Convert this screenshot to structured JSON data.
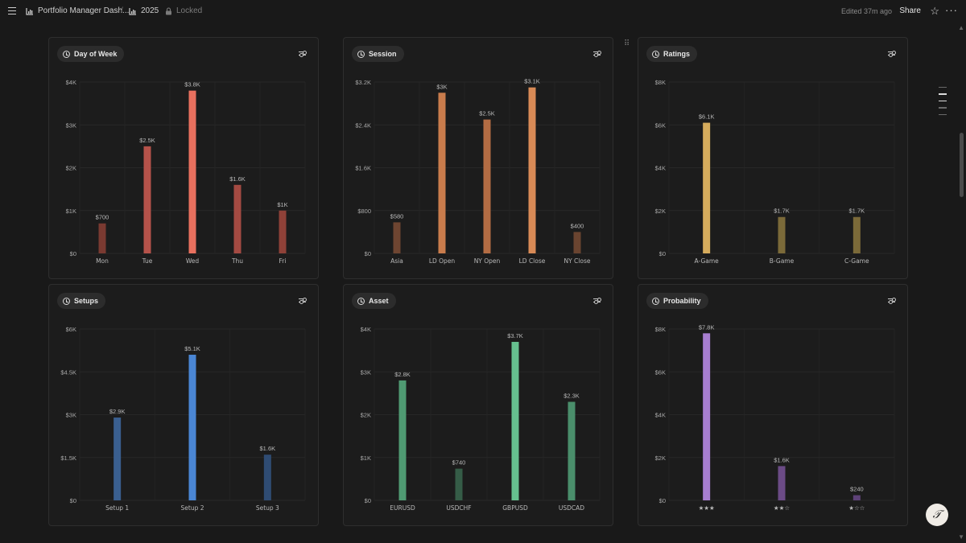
{
  "header": {
    "page_title": "Portfolio Manager Dash...",
    "subpage_title": "2025",
    "lock_status": "Locked",
    "edited_text": "Edited 37m ago",
    "share_label": "Share"
  },
  "colors": {
    "background": "#191919",
    "card": "#1c1c1c",
    "grid": "#2a2a2a"
  },
  "charts": [
    {
      "title": "Day of Week",
      "chart_data": {
        "type": "bar",
        "categories": [
          "Mon",
          "Tue",
          "Wed",
          "Thu",
          "Fri"
        ],
        "values": [
          700,
          2500,
          3800,
          1600,
          1000
        ],
        "value_labels": [
          "$700",
          "$2.5K",
          "$3.8K",
          "$1.6K",
          "$1K"
        ],
        "yticks": [
          0,
          1000,
          2000,
          3000,
          4000
        ],
        "ytick_labels": [
          "$0",
          "$1K",
          "$2K",
          "$3K",
          "$4K"
        ],
        "ylim": [
          0,
          4000
        ],
        "colors": [
          "#7a3a31",
          "#b5524a",
          "#e8705e",
          "#a44a42",
          "#8f4138"
        ]
      }
    },
    {
      "title": "Session",
      "chart_data": {
        "type": "bar",
        "categories": [
          "Asia",
          "LD Open",
          "NY Open",
          "LD Close",
          "NY Close"
        ],
        "values": [
          580,
          3000,
          2500,
          3100,
          400
        ],
        "value_labels": [
          "$580",
          "$3K",
          "$2.5K",
          "$3.1K",
          "$400"
        ],
        "yticks": [
          0,
          800,
          1600,
          2400,
          3200
        ],
        "ytick_labels": [
          "$0",
          "$800",
          "$1.6K",
          "$2.4K",
          "$3.2K"
        ],
        "ylim": [
          0,
          3200
        ],
        "colors": [
          "#6e4531",
          "#c97c4c",
          "#b36c43",
          "#d88a56",
          "#6a4430"
        ]
      }
    },
    {
      "title": "Ratings",
      "chart_data": {
        "type": "bar",
        "categories": [
          "A-Game",
          "B-Game",
          "C-Game"
        ],
        "values": [
          6100,
          1700,
          1700
        ],
        "value_labels": [
          "$6.1K",
          "$1.7K",
          "$1.7K"
        ],
        "yticks": [
          0,
          2000,
          4000,
          6000,
          8000
        ],
        "ytick_labels": [
          "$0",
          "$2K",
          "$4K",
          "$6K",
          "$8K"
        ],
        "ylim": [
          0,
          8000
        ],
        "colors": [
          "#d5ab5c",
          "#7b6a39",
          "#7b6a39"
        ]
      }
    },
    {
      "title": "Setups",
      "chart_data": {
        "type": "bar",
        "categories": [
          "Setup 1",
          "Setup 2",
          "Setup 3"
        ],
        "values": [
          2900,
          5100,
          1600
        ],
        "value_labels": [
          "$2.9K",
          "$5.1K",
          "$1.6K"
        ],
        "yticks": [
          0,
          1500,
          3000,
          4500,
          6000
        ],
        "ytick_labels": [
          "$0",
          "$1.5K",
          "$3K",
          "$4.5K",
          "$6K"
        ],
        "ylim": [
          0,
          6000
        ],
        "colors": [
          "#3a5f8f",
          "#4a86d4",
          "#2f4c73"
        ]
      }
    },
    {
      "title": "Asset",
      "chart_data": {
        "type": "bar",
        "categories": [
          "EURUSD",
          "USDCHF",
          "GBPUSD",
          "USDCAD"
        ],
        "values": [
          2800,
          740,
          3700,
          2300
        ],
        "value_labels": [
          "$2.8K",
          "$740",
          "$3.7K",
          "$2.3K"
        ],
        "yticks": [
          0,
          1000,
          2000,
          3000,
          4000
        ],
        "ytick_labels": [
          "$0",
          "$1K",
          "$2K",
          "$3K",
          "$4K"
        ],
        "ylim": [
          0,
          4000
        ],
        "colors": [
          "#4f9a72",
          "#355c47",
          "#66c08f",
          "#4a8e6b"
        ]
      }
    },
    {
      "title": "Probability",
      "chart_data": {
        "type": "bar",
        "categories": [
          "★★★",
          "★★☆",
          "★☆☆"
        ],
        "values": [
          7800,
          1600,
          240
        ],
        "value_labels": [
          "$7.8K",
          "$1.6K",
          "$240"
        ],
        "yticks": [
          0,
          2000,
          4000,
          6000,
          8000
        ],
        "ytick_labels": [
          "$0",
          "$2K",
          "$4K",
          "$6K",
          "$8K"
        ],
        "ylim": [
          0,
          8000
        ],
        "colors": [
          "#a77ed0",
          "#6b4b86",
          "#5e4278"
        ]
      }
    }
  ]
}
